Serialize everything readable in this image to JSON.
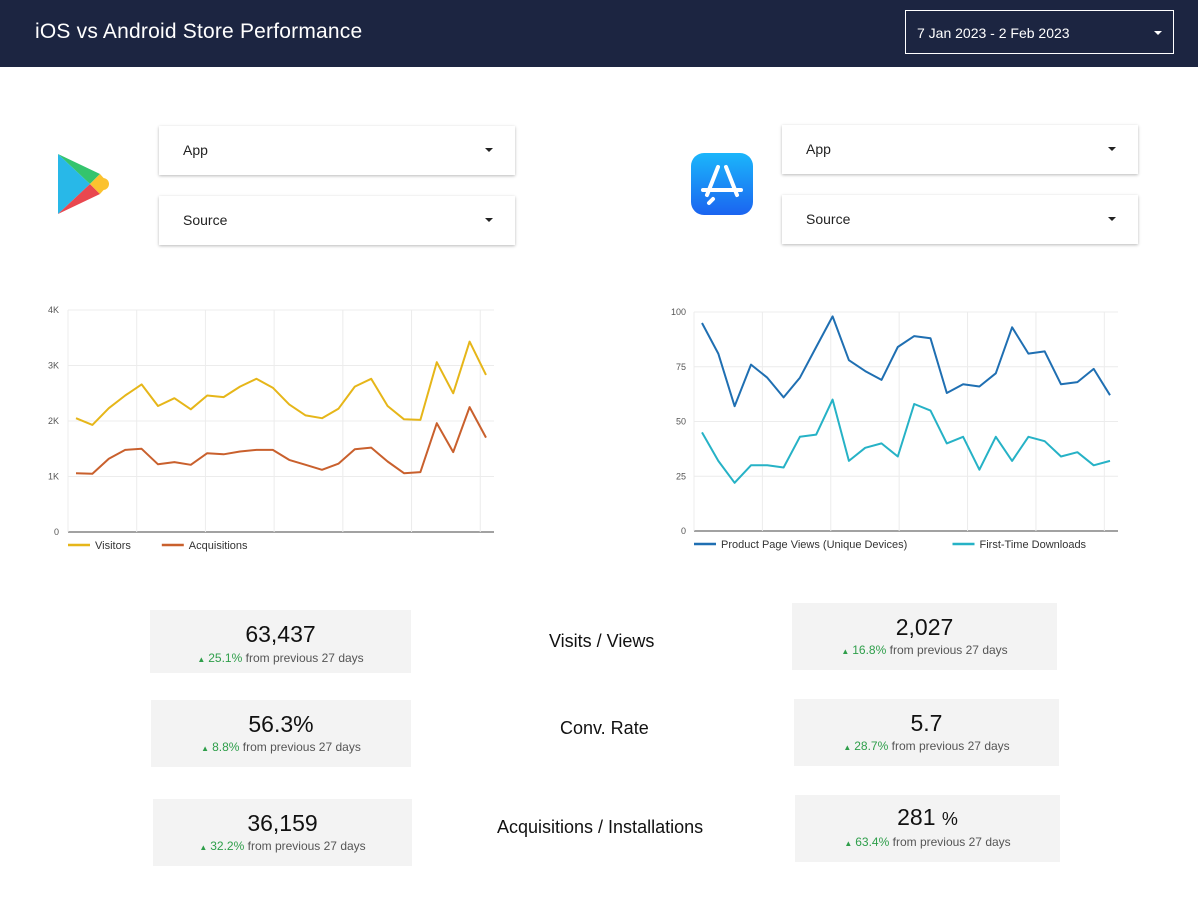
{
  "header": {
    "title": "iOS vs Android Store Performance",
    "date_range": "7 Jan 2023 - 2 Feb 2023"
  },
  "android": {
    "filters": {
      "app": "App",
      "source": "Source"
    },
    "logo_icon": "google-play-icon"
  },
  "ios": {
    "filters": {
      "app": "App",
      "source": "Source"
    },
    "logo_icon": "app-store-icon"
  },
  "chart_data": [
    {
      "type": "line",
      "title": "",
      "xlabel": "",
      "ylabel": "",
      "y_ticks": [
        "0",
        "1K",
        "2K",
        "3K",
        "4K"
      ],
      "ylim": [
        0,
        4000
      ],
      "grid": true,
      "legend_placement": "bottom-left",
      "series": [
        {
          "name": "Visitors",
          "color": "#e6b619",
          "values": [
            2050,
            1930,
            2230,
            2460,
            2660,
            2270,
            2410,
            2210,
            2460,
            2430,
            2620,
            2760,
            2600,
            2300,
            2100,
            2050,
            2220,
            2620,
            2760,
            2270,
            2030,
            2020,
            3060,
            2500,
            3430,
            2830
          ]
        },
        {
          "name": "Acquisitions",
          "color": "#c9602d",
          "values": [
            1060,
            1050,
            1320,
            1480,
            1500,
            1220,
            1260,
            1210,
            1420,
            1400,
            1450,
            1480,
            1480,
            1300,
            1210,
            1120,
            1230,
            1490,
            1520,
            1270,
            1060,
            1080,
            1960,
            1440,
            2250,
            1700
          ]
        }
      ]
    },
    {
      "type": "line",
      "title": "",
      "xlabel": "",
      "ylabel": "",
      "y_ticks": [
        "0",
        "25",
        "50",
        "75",
        "100"
      ],
      "ylim": [
        0,
        100
      ],
      "grid": true,
      "legend_placement": "bottom-left",
      "series": [
        {
          "name": "Product Page Views (Unique Devices)",
          "color": "#1f6fb2",
          "values": [
            95,
            81,
            57,
            76,
            70,
            61,
            70,
            84,
            98,
            78,
            73,
            69,
            84,
            89,
            88,
            63,
            67,
            66,
            72,
            93,
            81,
            82,
            67,
            68,
            74,
            62
          ]
        },
        {
          "name": "First-Time Downloads",
          "color": "#26b2c6",
          "values": [
            45,
            32,
            22,
            30,
            30,
            29,
            43,
            44,
            60,
            32,
            38,
            40,
            34,
            58,
            55,
            40,
            43,
            28,
            43,
            32,
            43,
            41,
            34,
            36,
            30,
            32
          ]
        }
      ]
    }
  ],
  "metrics": {
    "labels": [
      "Visits / Views",
      "Conv. Rate",
      "Acquisitions / Installations"
    ],
    "android": [
      {
        "value": "63,437",
        "delta": "25.1%",
        "suffix": "from previous 27 days"
      },
      {
        "value": "56.3%",
        "delta": "8.8%",
        "suffix": "from previous 27 days"
      },
      {
        "value": "36,159",
        "delta": "32.2%",
        "suffix": "from previous 27 days"
      }
    ],
    "ios": [
      {
        "value": "2,027",
        "delta": "16.8%",
        "suffix": "from previous 27 days"
      },
      {
        "value": "5.7",
        "delta": "28.7%",
        "suffix": "from previous 27 days"
      },
      {
        "value": "281",
        "unit": "%",
        "delta": "63.4%",
        "suffix": "from previous 27 days"
      }
    ]
  }
}
